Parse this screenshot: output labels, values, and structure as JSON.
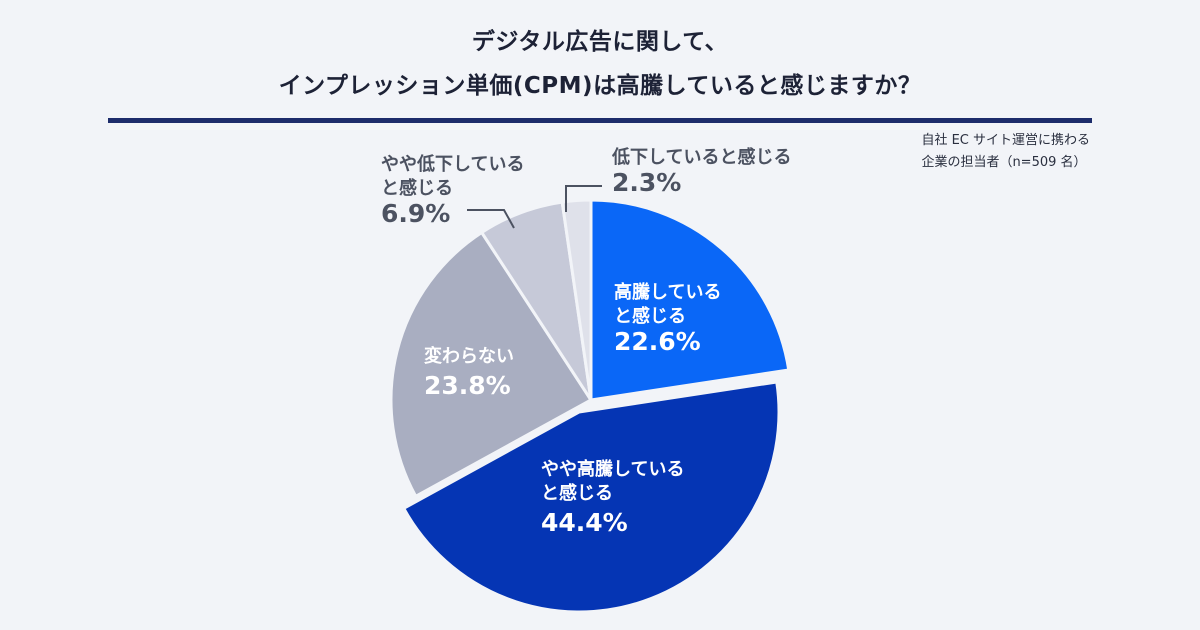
{
  "header": {
    "title_line1": "デジタル広告に関して、",
    "title_line2": "インプレッション単価(CPM)は高騰していると感じますか？",
    "note_line1": "自社 EC サイト運営に携わる",
    "note_line2": "企業の担当者（n=509 名）"
  },
  "colors": {
    "s1": "#0a67f7",
    "s2": "#0535b4",
    "s3": "#a9aec1",
    "s4": "#c6c9d8",
    "s5": "#dfe1ea",
    "label_light": "#ffffff",
    "label_dark": "#4c5261",
    "leader": "#4c5261"
  },
  "chart_data": {
    "type": "pie",
    "title": "デジタル広告に関して、インプレッション単価(CPM)は高騰していると感じますか？",
    "start": "12 o'clock, clockwise",
    "exploded": "やや高騰していると感じる",
    "slices": [
      {
        "label_lines": [
          "高騰している",
          "と感じる"
        ],
        "value": 22.6,
        "value_label": "22.6%"
      },
      {
        "label_lines": [
          "やや高騰している",
          "と感じる"
        ],
        "value": 44.4,
        "value_label": "44.4%"
      },
      {
        "label_lines": [
          "変わらない"
        ],
        "value": 23.8,
        "value_label": "23.8%"
      },
      {
        "label_lines": [
          "やや低下している",
          "と感じる"
        ],
        "value": 6.9,
        "value_label": "6.9%"
      },
      {
        "label_lines": [
          "低下していると感じる"
        ],
        "value": 2.3,
        "value_label": "2.3%"
      }
    ]
  }
}
